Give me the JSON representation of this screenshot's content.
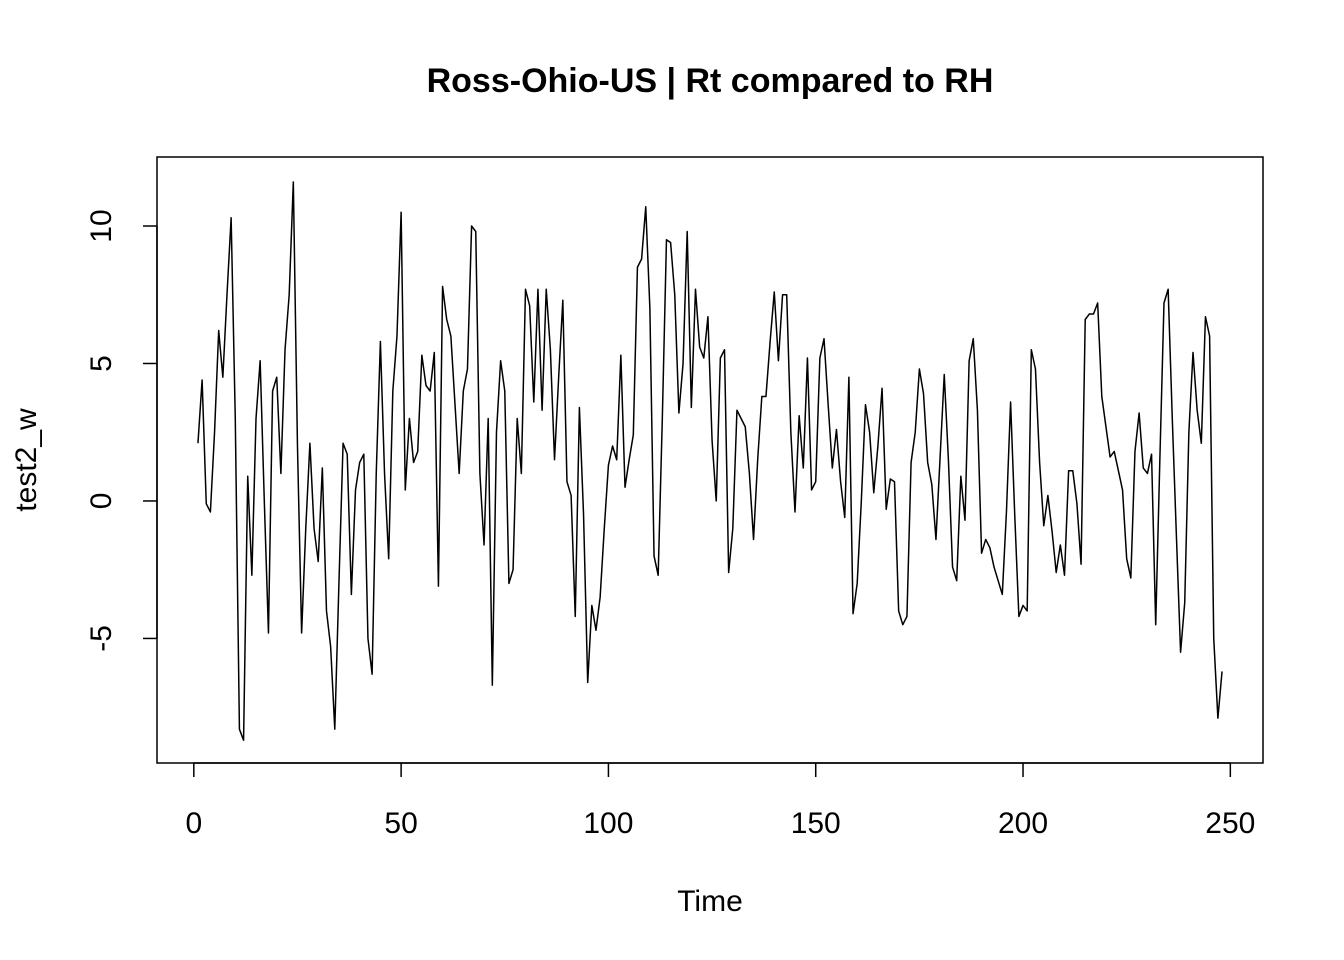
{
  "chart_data": {
    "type": "line",
    "title": "Ross-Ohio-US | Rt compared to RH",
    "xlabel": "Time",
    "ylabel": "test2_w",
    "x": [
      1,
      2,
      3,
      4,
      5,
      6,
      7,
      8,
      9,
      10,
      11,
      12,
      13,
      14,
      15,
      16,
      17,
      18,
      19,
      20,
      21,
      22,
      23,
      24,
      25,
      26,
      27,
      28,
      29,
      30,
      31,
      32,
      33,
      34,
      35,
      36,
      37,
      38,
      39,
      40,
      41,
      42,
      43,
      44,
      45,
      46,
      47,
      48,
      49,
      50,
      51,
      52,
      53,
      54,
      55,
      56,
      57,
      58,
      59,
      60,
      61,
      62,
      63,
      64,
      65,
      66,
      67,
      68,
      69,
      70,
      71,
      72,
      73,
      74,
      75,
      76,
      77,
      78,
      79,
      80,
      81,
      82,
      83,
      84,
      85,
      86,
      87,
      88,
      89,
      90,
      91,
      92,
      93,
      94,
      95,
      96,
      97,
      98,
      99,
      100,
      101,
      102,
      103,
      104,
      105,
      106,
      107,
      108,
      109,
      110,
      111,
      112,
      113,
      114,
      115,
      116,
      117,
      118,
      119,
      120,
      121,
      122,
      123,
      124,
      125,
      126,
      127,
      128,
      129,
      130,
      131,
      132,
      133,
      134,
      135,
      136,
      137,
      138,
      139,
      140,
      141,
      142,
      143,
      144,
      145,
      146,
      147,
      148,
      149,
      150,
      151,
      152,
      153,
      154,
      155,
      156,
      157,
      158,
      159,
      160,
      161,
      162,
      163,
      164,
      165,
      166,
      167,
      168,
      169,
      170,
      171,
      172,
      173,
      174,
      175,
      176,
      177,
      178,
      179,
      180,
      181,
      182,
      183,
      184,
      185,
      186,
      187,
      188,
      189,
      190,
      191,
      192,
      193,
      194,
      195,
      196,
      197,
      198,
      199,
      200,
      201,
      202,
      203,
      204,
      205,
      206,
      207,
      208,
      209,
      210,
      211,
      212,
      213,
      214,
      215,
      216,
      217,
      218,
      219,
      220,
      221,
      222,
      223,
      224,
      225,
      226,
      227,
      228,
      229,
      230,
      231,
      232,
      233,
      234,
      235,
      236,
      237,
      238,
      239,
      240,
      241,
      242,
      243,
      244,
      245,
      246,
      247,
      248
    ],
    "series": [
      {
        "name": "test2_w",
        "color": "#000000",
        "values": [
          2.1,
          4.4,
          -0.1,
          -0.4,
          2.5,
          6.2,
          4.5,
          7.5,
          10.3,
          3,
          -8.3,
          -8.7,
          0.9,
          -2.7,
          3,
          5.1,
          0,
          -4.8,
          4,
          4.5,
          1,
          5.5,
          7.5,
          11.6,
          2,
          -4.8,
          -1,
          2.1,
          -1,
          -2.2,
          1.2,
          -4,
          -5.3,
          -8.3,
          -3,
          2.1,
          1.7,
          -3.4,
          0.4,
          1.4,
          1.7,
          -5,
          -6.3,
          1,
          5.8,
          1,
          -2.1,
          4,
          6,
          10.5,
          0.4,
          3,
          1.4,
          1.8,
          5.3,
          4.2,
          4,
          5.4,
          -3.1,
          7.8,
          6.6,
          6,
          3.5,
          1,
          4,
          4.8,
          10,
          9.8,
          1,
          -1.6,
          3,
          -6.7,
          2.5,
          5.1,
          4,
          -3,
          -2.5,
          3,
          1,
          7.7,
          7.1,
          3.6,
          7.7,
          3.3,
          7.7,
          5.5,
          1.5,
          4.5,
          7.3,
          0.7,
          0.2,
          -4.2,
          3.4,
          -0.5,
          -6.6,
          -3.8,
          -4.7,
          -3.5,
          -1,
          1.3,
          2,
          1.5,
          5.3,
          0.5,
          1.5,
          2.4,
          8.5,
          8.8,
          10.7,
          7,
          -2,
          -2.7,
          3,
          9.5,
          9.4,
          7.5,
          3.2,
          5,
          9.8,
          3.4,
          7.7,
          5.6,
          5.2,
          6.7,
          2.2,
          0,
          5.2,
          5.5,
          -2.6,
          -1,
          3.3,
          3,
          2.7,
          1,
          -1.4,
          1.5,
          3.8,
          3.8,
          5.8,
          7.6,
          5.1,
          7.5,
          7.5,
          2.5,
          -0.4,
          3.1,
          1.2,
          5.2,
          0.4,
          0.7,
          5.2,
          5.9,
          3.5,
          1.2,
          2.6,
          0.7,
          -0.6,
          4.5,
          -4.1,
          -3,
          0,
          3.5,
          2.5,
          0.3,
          2,
          4.1,
          -0.3,
          0.8,
          0.7,
          -4,
          -4.5,
          -4.2,
          1.4,
          2.5,
          4.8,
          3.9,
          1.4,
          0.6,
          -1.4,
          1.6,
          4.6,
          1.5,
          -2.4,
          -2.9,
          0.9,
          -0.7,
          5.1,
          5.9,
          3.3,
          -1.9,
          -1.4,
          -1.7,
          -2.4,
          -2.9,
          -3.4,
          -0.4,
          3.6,
          -0.5,
          -4.2,
          -3.8,
          -4,
          5.5,
          4.8,
          1.4,
          -0.9,
          0.2,
          -1.1,
          -2.6,
          -1.6,
          -2.7,
          1.1,
          1.1,
          -0.1,
          -2.3,
          6.6,
          6.8,
          6.8,
          7.2,
          3.8,
          2.7,
          1.6,
          1.8,
          1.1,
          0.4,
          -2.1,
          -2.8,
          1.8,
          3.2,
          1.2,
          1,
          1.7,
          -4.5,
          1.5,
          7.2,
          7.7,
          3,
          -1.3,
          -5.5,
          -3.7,
          2.5,
          5.4,
          3.3,
          2.1,
          6.7,
          6,
          -5,
          -7.9,
          -6.2
        ]
      }
    ],
    "xlim": [
      -8.88,
      257.88
    ],
    "xticks": [
      0,
      50,
      100,
      150,
      200,
      250
    ],
    "ylim": [
      -9.53,
      12.51
    ],
    "yticks": [
      -5,
      0,
      5,
      10
    ]
  }
}
